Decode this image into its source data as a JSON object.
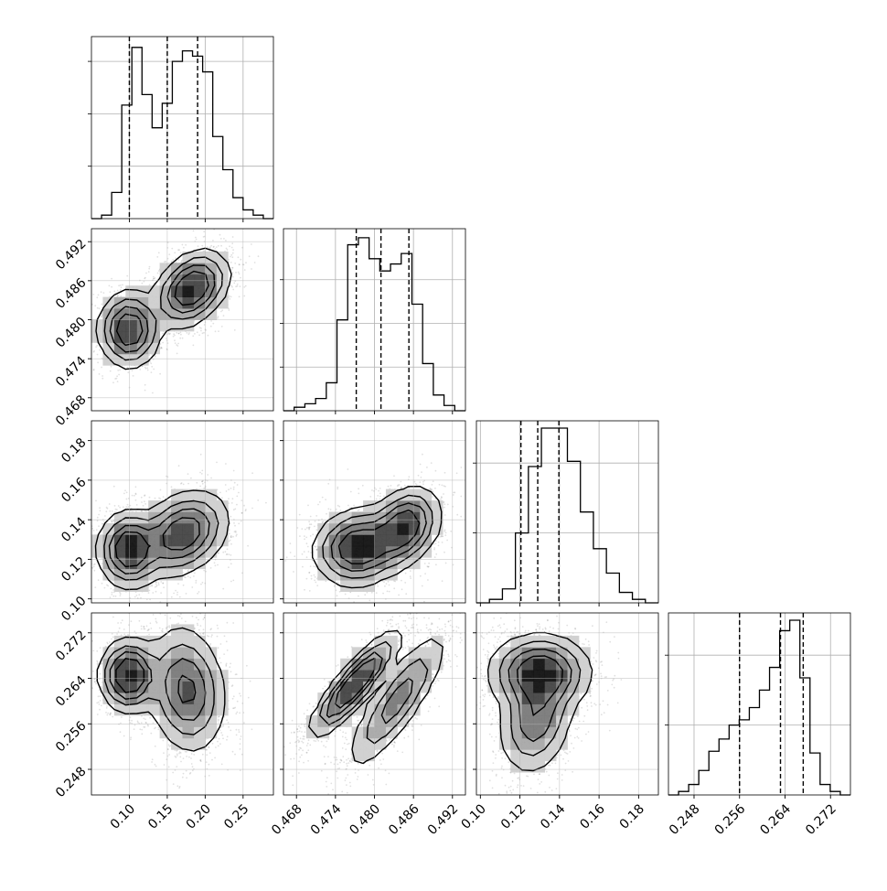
{
  "chart_data": {
    "type": "corner",
    "grid": true,
    "tick_labels": {
      "x": [
        [
          "0.10",
          "0.15",
          "0.20",
          "0.25"
        ],
        [
          "0.468",
          "0.474",
          "0.480",
          "0.486",
          "0.492"
        ],
        [
          "0.10",
          "0.12",
          "0.14",
          "0.16",
          "0.18"
        ],
        [
          "0.248",
          "0.256",
          "0.264",
          "0.272"
        ]
      ],
      "y": [
        [],
        [
          "0.468",
          "0.474",
          "0.480",
          "0.486",
          "0.492"
        ],
        [
          "0.10",
          "0.12",
          "0.14",
          "0.16",
          "0.18"
        ],
        [
          "0.248",
          "0.256",
          "0.264",
          "0.272"
        ]
      ]
    },
    "parameters": [
      {
        "range": [
          0.05,
          0.29
        ],
        "ticks": [
          0.1,
          0.15,
          0.2,
          0.25
        ],
        "quantiles": [
          0.1,
          0.15,
          0.19
        ],
        "hist_peak": 1.0,
        "hist_gridlines": [
          0.3,
          0.6,
          0.9
        ],
        "hist": [
          0.0,
          0.02,
          0.15,
          0.65,
          0.98,
          0.71,
          0.52,
          0.66,
          0.9,
          0.96,
          0.93,
          0.84,
          0.47,
          0.28,
          0.12,
          0.05,
          0.02,
          0.0
        ]
      },
      {
        "range": [
          0.466,
          0.494
        ],
        "ticks": [
          0.468,
          0.474,
          0.48,
          0.486,
          0.492
        ],
        "quantiles": [
          0.4772,
          0.481,
          0.4853
        ],
        "hist_peak": 1.0,
        "hist_gridlines": [
          0.25,
          0.5,
          0.75
        ],
        "hist": [
          0.0,
          0.02,
          0.04,
          0.07,
          0.16,
          0.52,
          0.95,
          0.99,
          0.87,
          0.8,
          0.84,
          0.9,
          0.61,
          0.27,
          0.09,
          0.03,
          0.0
        ]
      },
      {
        "range": [
          0.098,
          0.19
        ],
        "ticks": [
          0.1,
          0.12,
          0.14,
          0.16,
          0.18
        ],
        "quantiles": [
          0.1205,
          0.129,
          0.1397
        ],
        "hist_peak": 1.0,
        "hist_gridlines": [
          0.4,
          0.8
        ],
        "hist": [
          0.0,
          0.02,
          0.08,
          0.4,
          0.78,
          1.0,
          1.0,
          0.81,
          0.52,
          0.31,
          0.17,
          0.06,
          0.02,
          0.0
        ]
      },
      {
        "range": [
          0.2435,
          0.2755
        ],
        "ticks": [
          0.248,
          0.256,
          0.264,
          0.272
        ],
        "quantiles": [
          0.256,
          0.2632,
          0.2672
        ],
        "hist_peak": 1.0,
        "hist_gridlines": [
          0.4,
          0.8
        ],
        "hist": [
          0.0,
          0.02,
          0.06,
          0.14,
          0.25,
          0.32,
          0.4,
          0.43,
          0.5,
          0.6,
          0.73,
          0.94,
          1.0,
          0.67,
          0.24,
          0.06,
          0.02,
          0.0
        ]
      }
    ],
    "joint_distributions": [
      {
        "row": 1,
        "col": 0,
        "modes": [
          {
            "x": 0.1,
            "y": 0.4785,
            "sx": 0.018,
            "sy": 0.0026,
            "r": 0.0,
            "w": 0.45
          },
          {
            "x": 0.182,
            "y": 0.4848,
            "sx": 0.022,
            "sy": 0.0026,
            "r": 0.35,
            "w": 0.55
          }
        ]
      },
      {
        "row": 2,
        "col": 0,
        "modes": [
          {
            "x": 0.1,
            "y": 0.125,
            "sx": 0.018,
            "sy": 0.0085,
            "r": 0.0,
            "w": 0.42
          },
          {
            "x": 0.17,
            "y": 0.133,
            "sx": 0.027,
            "sy": 0.0095,
            "r": 0.3,
            "w": 0.58
          }
        ]
      },
      {
        "row": 2,
        "col": 1,
        "modes": [
          {
            "x": 0.4775,
            "y": 0.126,
            "sx": 0.003,
            "sy": 0.0085,
            "r": 0.1,
            "w": 0.55
          },
          {
            "x": 0.4845,
            "y": 0.136,
            "sx": 0.0025,
            "sy": 0.009,
            "r": 0.3,
            "w": 0.45
          }
        ]
      },
      {
        "row": 3,
        "col": 0,
        "modes": [
          {
            "x": 0.1,
            "y": 0.2645,
            "sx": 0.017,
            "sy": 0.0028,
            "r": 0.0,
            "w": 0.4
          },
          {
            "x": 0.175,
            "y": 0.262,
            "sx": 0.023,
            "sy": 0.005,
            "r": -0.15,
            "w": 0.6
          }
        ]
      },
      {
        "row": 3,
        "col": 1,
        "modes": [
          {
            "x": 0.477,
            "y": 0.263,
            "sx": 0.003,
            "sy": 0.004,
            "r": 0.88,
            "w": 0.55
          },
          {
            "x": 0.4835,
            "y": 0.26,
            "sx": 0.0035,
            "sy": 0.0055,
            "r": 0.85,
            "w": 0.45
          }
        ]
      },
      {
        "row": 3,
        "col": 2,
        "modes": [
          {
            "x": 0.13,
            "y": 0.265,
            "sx": 0.0115,
            "sy": 0.003,
            "r": 0.0,
            "w": 0.6
          },
          {
            "x": 0.128,
            "y": 0.257,
            "sx": 0.0085,
            "sy": 0.0045,
            "r": 0.2,
            "w": 0.4
          }
        ]
      }
    ]
  }
}
